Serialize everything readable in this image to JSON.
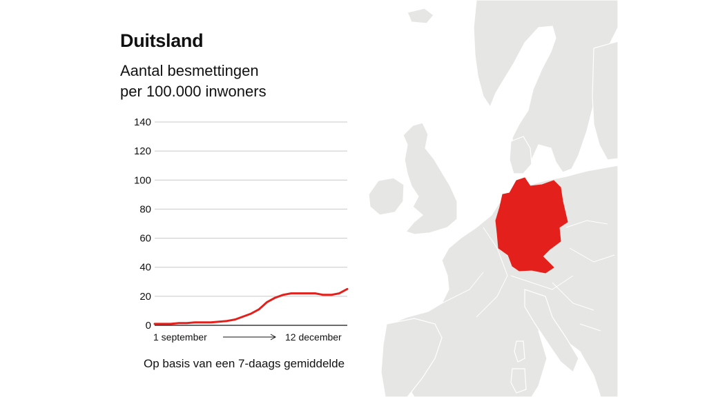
{
  "title": "Duitsland",
  "subtitle_line1": "Aantal besmettingen",
  "subtitle_line2": "per 100.000 inwoners",
  "footnote": "Op basis van een 7-daags gemiddelde",
  "colors": {
    "accent": "#e3201b",
    "land": "#e6e6e4",
    "border": "#ffffff",
    "grid": "#c8c8c8"
  },
  "chart_data": {
    "type": "line",
    "ylim": [
      0,
      140
    ],
    "yticks": [
      0,
      20,
      40,
      60,
      80,
      100,
      120,
      140
    ],
    "x_start_label": "1 september",
    "x_end_label": "12 december",
    "series": [
      {
        "values": [
          1,
          1,
          1,
          1.5,
          1.5,
          2,
          2,
          2,
          2.5,
          3,
          4,
          6,
          8,
          11,
          16,
          19,
          21,
          22,
          22,
          22,
          22,
          21,
          21,
          22,
          25
        ]
      }
    ]
  }
}
